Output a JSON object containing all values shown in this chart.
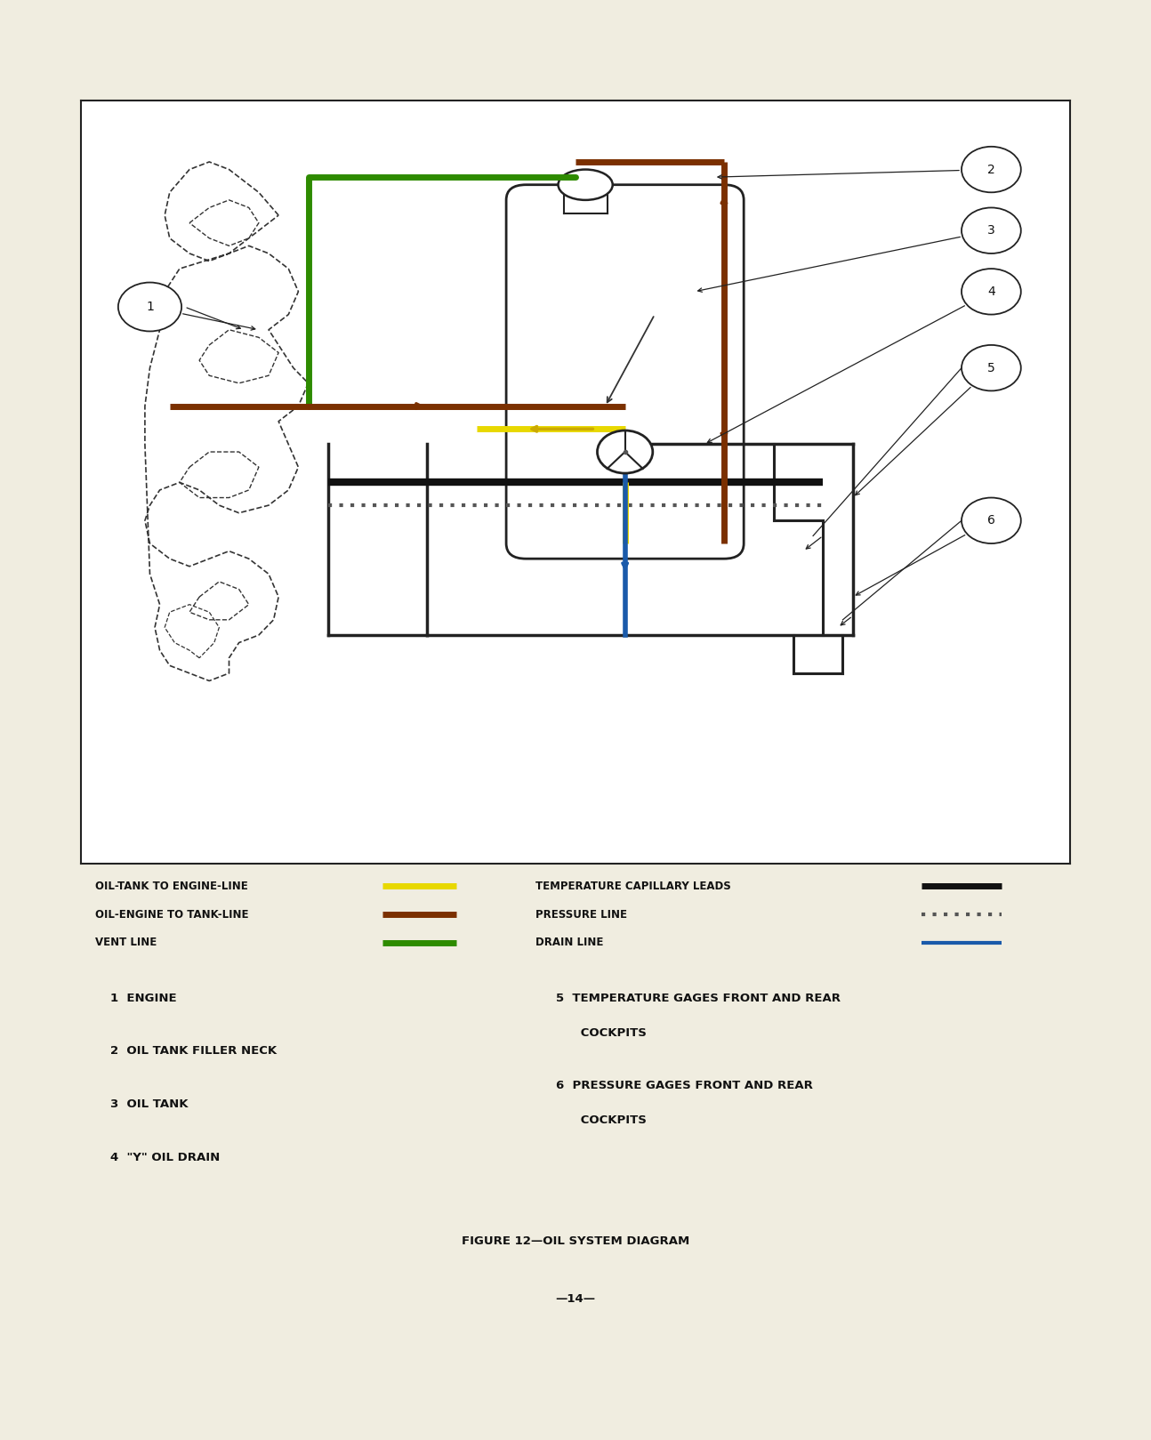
{
  "bg_color": "#f0ede0",
  "box_bg": "#ffffff",
  "title": "FIGURE 12—OIL SYSTEM DIAGRAM",
  "page_number": "—14—",
  "legend_left": [
    {
      "label": "OIL-TANK TO ENGINE-LINE",
      "color": "#e8d800",
      "linestyle": "solid",
      "lw": 5
    },
    {
      "label": "OIL-ENGINE TO TANK-LINE",
      "color": "#7B3000",
      "linestyle": "solid",
      "lw": 5
    },
    {
      "label": "VENT LINE",
      "color": "#2e8b00",
      "linestyle": "solid",
      "lw": 5
    }
  ],
  "legend_right": [
    {
      "label": "TEMPERATURE CAPILLARY LEADS",
      "color": "#111111",
      "linestyle": "solid",
      "lw": 5
    },
    {
      "label": "PRESSURE LINE",
      "color": "#555555",
      "linestyle": "dotted",
      "lw": 3
    },
    {
      "label": "DRAIN LINE",
      "color": "#1a5aaa",
      "linestyle": "solid",
      "lw": 3
    }
  ],
  "parts_left": [
    "1  ENGINE",
    "2  OIL TANK FILLER NECK",
    "3  OIL TANK",
    "4  \"Y\" OIL DRAIN"
  ],
  "parts_right": [
    "5  TEMPERATURE GAGES FRONT AND REAR",
    "      COCKPITS",
    "6  PRESSURE GAGES FRONT AND REAR",
    "      COCKPITS"
  ]
}
